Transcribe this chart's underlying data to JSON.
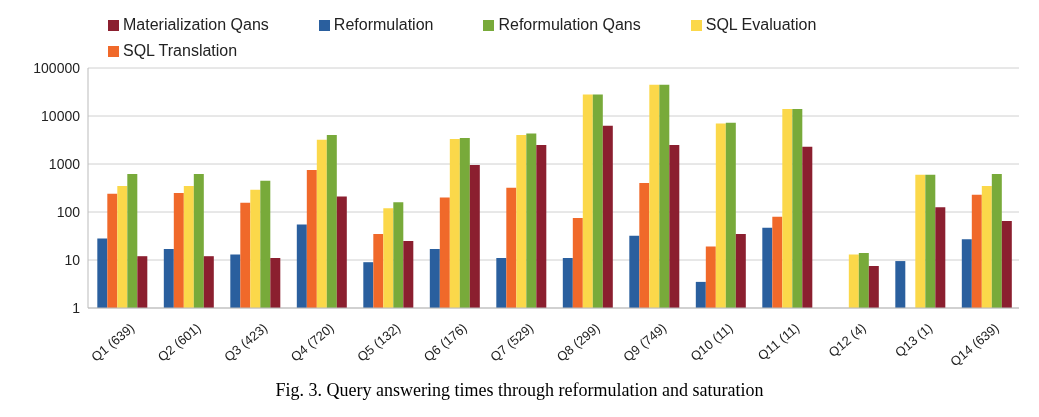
{
  "chart_data": {
    "type": "bar",
    "categories": [
      "Q1 (639)",
      "Q2 (601)",
      "Q3 (423)",
      "Q4 (720)",
      "Q5 (132)",
      "Q6 (176)",
      "Q7 (529)",
      "Q8 (299)",
      "Q9 (749)",
      "Q10 (11)",
      "Q11 (11)",
      "Q12 (4)",
      "Q13 (1)",
      "Q14 (639)"
    ],
    "series": [
      {
        "name": "Reformulation",
        "color": "#2a5f9e",
        "values": [
          28,
          17,
          13,
          55,
          9,
          17,
          11,
          11,
          32,
          3.5,
          47,
          null,
          9.5,
          27
        ]
      },
      {
        "name": "SQL Translation",
        "color": "#f0692a",
        "values": [
          240,
          250,
          155,
          750,
          35,
          200,
          320,
          75,
          400,
          19,
          80,
          null,
          null,
          230
        ]
      },
      {
        "name": "SQL Evaluation",
        "color": "#fbd84a",
        "values": [
          350,
          350,
          290,
          3200,
          120,
          3300,
          4000,
          28000,
          45000,
          7000,
          14000,
          13,
          600,
          350
        ]
      },
      {
        "name": "Reformulation Qans",
        "color": "#78aa3a",
        "values": [
          620,
          620,
          450,
          4000,
          160,
          3500,
          4300,
          28000,
          45000,
          7200,
          14000,
          14,
          600,
          620
        ]
      },
      {
        "name": "Materialization Qans",
        "color": "#8b1f2f",
        "values": [
          12,
          12,
          11,
          210,
          25,
          950,
          2500,
          6300,
          2500,
          35,
          2300,
          7.5,
          125,
          65
        ]
      }
    ],
    "log": true,
    "ylim": [
      1,
      100000
    ],
    "yticks": [
      1,
      10,
      100,
      1000,
      10000,
      100000
    ],
    "grid": "y",
    "legend": "top",
    "annotations": [
      "Fig. 3. Query answering times through reformulation and saturation"
    ]
  }
}
